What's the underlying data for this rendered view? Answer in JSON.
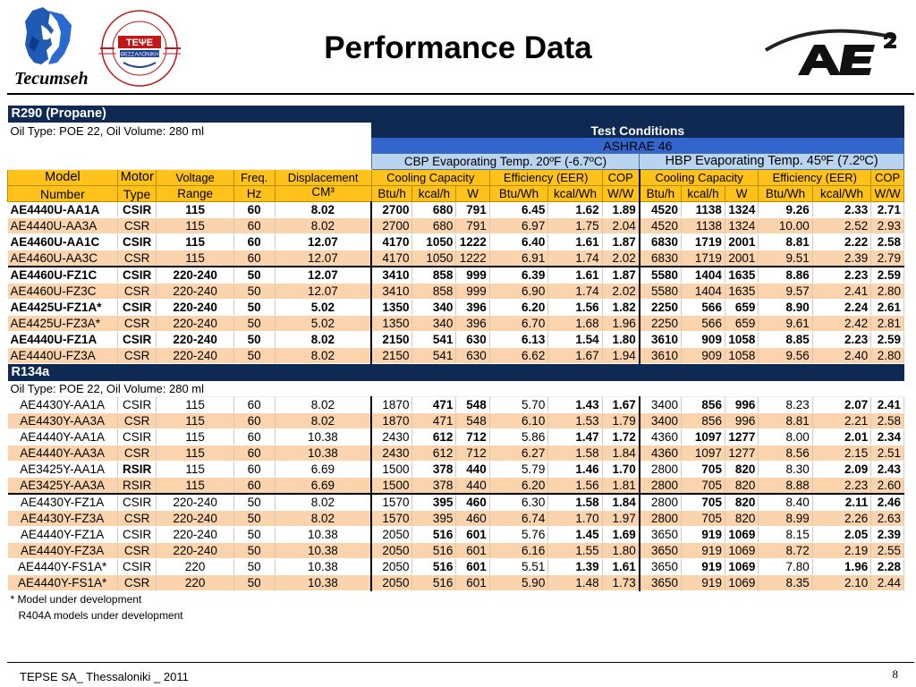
{
  "slide": {
    "title": "Performance Data",
    "logo_left_text": "Tecumseh",
    "seal_text": "ΤΕΨΕ",
    "seal_sub": "ΘΕΣΣΑΛΟΝΙΚΗ",
    "footer_left": "TEPSE SA_ Thessaloniki _ 2011",
    "page_number": "8"
  },
  "table": {
    "test_conditions": "Test Conditions",
    "ashrae": "ASHRAE 46",
    "cbp": "CBP Evaporating Temp. 20ºF (-6.7ºC)",
    "hbp": "HBP Evaporating Temp. 45ºF (7.2ºC)",
    "header_top": [
      "Model",
      "Motor",
      "Voltage",
      "Freq.",
      "Displacement",
      "Cooling Capacity",
      "Efficiency (EER)",
      "COP",
      "Cooling Capacity",
      "Efficiency (EER)",
      "COP"
    ],
    "header_sub": [
      "Number",
      "Type",
      "Range",
      "Hz",
      "CM³"
    ],
    "units": [
      "Btu/h",
      "kcal/h",
      "W",
      "Btu/Wh",
      "kcal/Wh",
      "W/W",
      "Btu/h",
      "kcal/h",
      "W",
      "Btu/Wh",
      "kcal/Wh",
      "W/W"
    ],
    "sections": [
      {
        "name": "R290 (Propane)",
        "oil": "Oil Type: POE 22, Oil Volume: 280 ml",
        "rows": [
          {
            "style": "white bold",
            "sep": false,
            "cells": [
              "AE4440U-AA1A",
              "CSIR",
              "115",
              "60",
              "8.02",
              "2700",
              "680",
              "791",
              "6.45",
              "1.62",
              "1.89",
              "4520",
              "1138",
              "1324",
              "9.26",
              "2.33",
              "2.71"
            ]
          },
          {
            "style": "peach",
            "sep": false,
            "cells": [
              "AE4440U-AA3A",
              "CSR",
              "115",
              "60",
              "8.02",
              "2700",
              "680",
              "791",
              "6.97",
              "1.75",
              "2.04",
              "4520",
              "1138",
              "1324",
              "10.00",
              "2.52",
              "2.93"
            ]
          },
          {
            "style": "white bold",
            "sep": false,
            "cells": [
              "AE4460U-AA1C",
              "CSIR",
              "115",
              "60",
              "12.07",
              "4170",
              "1050",
              "1222",
              "6.40",
              "1.61",
              "1.87",
              "6830",
              "1719",
              "2001",
              "8.81",
              "2.22",
              "2.58"
            ]
          },
          {
            "style": "peach",
            "sep": false,
            "cells": [
              "AE4460U-AA3C",
              "CSR",
              "115",
              "60",
              "12.07",
              "4170",
              "1050",
              "1222",
              "6.91",
              "1.74",
              "2.02",
              "6830",
              "1719",
              "2001",
              "9.51",
              "2.39",
              "2.79"
            ]
          },
          {
            "style": "white bold",
            "sep": true,
            "cells": [
              "AE4460U-FZ1C",
              "CSIR",
              "220-240",
              "50",
              "12.07",
              "3410",
              "858",
              "999",
              "6.39",
              "1.61",
              "1.87",
              "5580",
              "1404",
              "1635",
              "8.86",
              "2.23",
              "2.59"
            ]
          },
          {
            "style": "peach",
            "sep": false,
            "cells": [
              "AE4460U-FZ3C",
              "CSR",
              "220-240",
              "50",
              "12.07",
              "3410",
              "858",
              "999",
              "6.90",
              "1.74",
              "2.02",
              "5580",
              "1404",
              "1635",
              "9.57",
              "2.41",
              "2.80"
            ]
          },
          {
            "style": "white bold",
            "sep": false,
            "cells": [
              "AE4425U-FZ1A*",
              "CSIR",
              "220-240",
              "50",
              "5.02",
              "1350",
              "340",
              "396",
              "6.20",
              "1.56",
              "1.82",
              "2250",
              "566",
              "659",
              "8.90",
              "2.24",
              "2.61"
            ]
          },
          {
            "style": "peach",
            "sep": false,
            "cells": [
              "AE4425U-FZ3A*",
              "CSR",
              "220-240",
              "50",
              "5.02",
              "1350",
              "340",
              "396",
              "6.70",
              "1.68",
              "1.96",
              "2250",
              "566",
              "659",
              "9.61",
              "2.42",
              "2.81"
            ]
          },
          {
            "style": "white bold",
            "sep": false,
            "cells": [
              "AE4440U-FZ1A",
              "CSIR",
              "220-240",
              "50",
              "8.02",
              "2150",
              "541",
              "630",
              "6.13",
              "1.54",
              "1.80",
              "3610",
              "909",
              "1058",
              "8.85",
              "2.23",
              "2.59"
            ]
          },
          {
            "style": "peach",
            "sep": false,
            "cells": [
              "AE4440U-FZ3A",
              "CSR",
              "220-240",
              "50",
              "8.02",
              "2150",
              "541",
              "630",
              "6.62",
              "1.67",
              "1.94",
              "3610",
              "909",
              "1058",
              "9.56",
              "2.40",
              "2.80"
            ]
          }
        ]
      },
      {
        "name": "R134a",
        "oil": "Oil Type: POE 22, Oil Volume: 280 ml",
        "rows": [
          {
            "style": "white",
            "sep": false,
            "cells": [
              "AE4430Y-AA1A",
              "CSIR",
              "115",
              "60",
              "8.02",
              "1870",
              "471",
              "548",
              "5.70",
              "1.43",
              "1.67",
              "3400",
              "856",
              "996",
              "8.23",
              "2.07",
              "2.41"
            ]
          },
          {
            "style": "peach",
            "sep": false,
            "cells": [
              "AE4430Y-AA3A",
              "CSR",
              "115",
              "60",
              "8.02",
              "1870",
              "471",
              "548",
              "6.10",
              "1.53",
              "1.79",
              "3400",
              "856",
              "996",
              "8.81",
              "2.21",
              "2.58"
            ]
          },
          {
            "style": "white",
            "sep": false,
            "cells": [
              "AE4440Y-AA1A",
              "CSIR",
              "115",
              "60",
              "10.38",
              "2430",
              "612",
              "712",
              "5.86",
              "1.47",
              "1.72",
              "4360",
              "1097",
              "1277",
              "8.00",
              "2.01",
              "2.34"
            ]
          },
          {
            "style": "peach",
            "sep": false,
            "cells": [
              "AE4440Y-AA3A",
              "CSR",
              "115",
              "60",
              "10.38",
              "2430",
              "612",
              "712",
              "6.27",
              "1.58",
              "1.84",
              "4360",
              "1097",
              "1277",
              "8.56",
              "2.15",
              "2.51"
            ]
          },
          {
            "style": "white",
            "sep": false,
            "cells": [
              "AE3425Y-AA1A",
              "RSIR",
              "115",
              "60",
              "6.69",
              "1500",
              "378",
              "440",
              "5.79",
              "1.46",
              "1.70",
              "2800",
              "705",
              "820",
              "8.30",
              "2.09",
              "2.43"
            ]
          },
          {
            "style": "peach",
            "sep": false,
            "cells": [
              "AE3425Y-AA3A",
              "RSIR",
              "115",
              "60",
              "6.69",
              "1500",
              "378",
              "440",
              "6.20",
              "1.56",
              "1.81",
              "2800",
              "705",
              "820",
              "8.88",
              "2.23",
              "2.60"
            ]
          },
          {
            "style": "white",
            "sep": true,
            "cells": [
              "AE4430Y-FZ1A",
              "CSIR",
              "220-240",
              "50",
              "8.02",
              "1570",
              "395",
              "460",
              "6.30",
              "1.58",
              "1.84",
              "2800",
              "705",
              "820",
              "8.40",
              "2.11",
              "2.46"
            ]
          },
          {
            "style": "peach",
            "sep": false,
            "cells": [
              "AE4430Y-FZ3A",
              "CSR",
              "220-240",
              "50",
              "8.02",
              "1570",
              "395",
              "460",
              "6.74",
              "1.70",
              "1.97",
              "2800",
              "705",
              "820",
              "8.99",
              "2.26",
              "2.63"
            ]
          },
          {
            "style": "white",
            "sep": false,
            "cells": [
              "AE4440Y-FZ1A",
              "CSIR",
              "220-240",
              "50",
              "10.38",
              "2050",
              "516",
              "601",
              "5.76",
              "1.45",
              "1.69",
              "3650",
              "919",
              "1069",
              "8.15",
              "2.05",
              "2.39"
            ]
          },
          {
            "style": "peach",
            "sep": false,
            "cells": [
              "AE4440Y-FZ3A",
              "CSR",
              "220-240",
              "50",
              "10.38",
              "2050",
              "516",
              "601",
              "6.16",
              "1.55",
              "1.80",
              "3650",
              "919",
              "1069",
              "8.72",
              "2.19",
              "2.55"
            ]
          },
          {
            "style": "white",
            "sep": false,
            "cells": [
              "AE4440Y-FS1A*",
              "CSIR",
              "220",
              "50",
              "10.38",
              "2050",
              "516",
              "601",
              "5.51",
              "1.39",
              "1.61",
              "3650",
              "919",
              "1069",
              "7.80",
              "1.96",
              "2.28"
            ]
          },
          {
            "style": "peach",
            "sep": false,
            "cells": [
              "AE4440Y-FS1A*",
              "CSR",
              "220",
              "50",
              "10.38",
              "2050",
              "516",
              "601",
              "5.90",
              "1.48",
              "1.73",
              "3650",
              "919",
              "1069",
              "8.35",
              "2.10",
              "2.44"
            ]
          }
        ]
      }
    ],
    "notes": [
      "* Model under development",
      "R404A models under development"
    ]
  }
}
